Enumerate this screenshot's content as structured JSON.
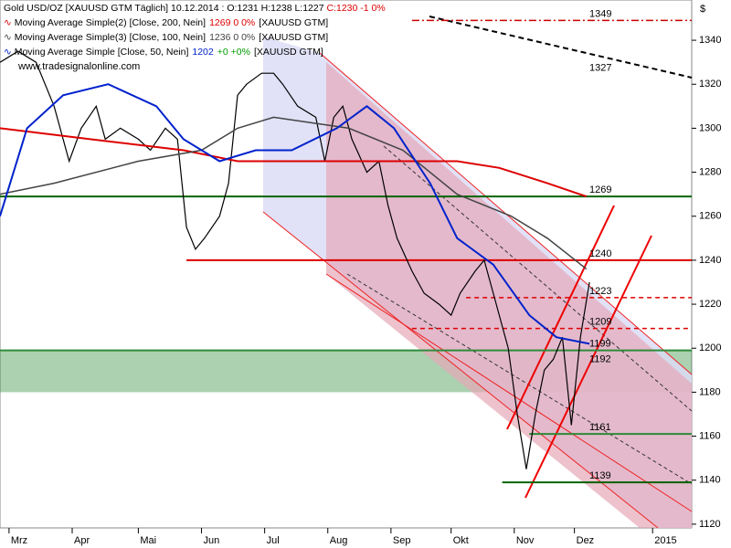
{
  "chart_data": {
    "type": "line",
    "title": "Gold USD/OZ [XAUUSD GTM  Täglich] 10.12.2014 : O:1231 H:1238 L:1227",
    "title_change": "C:1230 -1 0%",
    "watermark": "www.tradesignalonline.com",
    "currency": "$",
    "xlim": [
      0,
      230
    ],
    "xticks": [
      {
        "value": 3,
        "label": "Mrz"
      },
      {
        "value": 24,
        "label": "Apr"
      },
      {
        "value": 46,
        "label": "Mai"
      },
      {
        "value": 67,
        "label": "Jun"
      },
      {
        "value": 88,
        "label": "Jul"
      },
      {
        "value": 109,
        "label": "Aug"
      },
      {
        "value": 130,
        "label": "Sep"
      },
      {
        "value": 150,
        "label": "Okt"
      },
      {
        "value": 171,
        "label": "Nov"
      },
      {
        "value": 191,
        "label": "Dez"
      },
      {
        "value": 217,
        "label": "2015"
      }
    ],
    "ylim": [
      1118.3,
      1358.3
    ],
    "yticks": [
      1120,
      1140,
      1160,
      1180,
      1200,
      1220,
      1240,
      1260,
      1280,
      1300,
      1320,
      1340
    ],
    "series": [
      {
        "color": "#000000",
        "width": 1.2,
        "x": [
          0,
          6,
          12,
          18,
          23,
          27,
          32,
          35,
          40,
          46,
          50,
          55,
          59,
          62,
          65,
          68,
          73,
          76,
          79,
          82,
          87,
          91,
          94,
          99,
          105,
          108,
          111,
          114,
          117,
          122,
          126,
          129,
          132,
          137,
          141,
          146,
          150,
          153,
          158,
          161,
          164,
          169,
          172,
          175,
          178,
          181,
          184,
          187,
          190,
          193,
          196
        ],
        "values": [
          1330,
          1335,
          1330,
          1310,
          1285,
          1300,
          1310,
          1295,
          1300,
          1295,
          1290,
          1300,
          1295,
          1255,
          1245,
          1250,
          1260,
          1275,
          1315,
          1320,
          1325,
          1325,
          1320,
          1310,
          1305,
          1285,
          1305,
          1310,
          1295,
          1280,
          1285,
          1265,
          1250,
          1235,
          1225,
          1220,
          1215,
          1225,
          1235,
          1240,
          1225,
          1200,
          1170,
          1145,
          1170,
          1190,
          1195,
          1205,
          1165,
          1205,
          1230
        ]
      },
      {
        "name": "Moving Average Simple(2) [Close, 200, Nein]",
        "legend_value": "1269 0 0%",
        "legend_tail": "[XAUUSD GTM]",
        "color": "#dd0000",
        "width": 2,
        "x": [
          0,
          30,
          61,
          79,
          91,
          122,
          152,
          166,
          182,
          195
        ],
        "values": [
          1300,
          1295,
          1290,
          1285,
          1285,
          1285,
          1285,
          1282,
          1275,
          1269
        ]
      },
      {
        "name": "Moving Average Simple(3) [Close, 100, Nein]",
        "legend_value": "1236 0 0%",
        "legend_tail": "[XAUUSD GTM]",
        "color": "#444444",
        "width": 1.5,
        "x": [
          0,
          18,
          46,
          67,
          79,
          91,
          116,
          134,
          152,
          170,
          182,
          195
        ],
        "values": [
          1270,
          1275,
          1285,
          1290,
          1300,
          1305,
          1300,
          1290,
          1270,
          1260,
          1250,
          1236
        ]
      },
      {
        "name": "Moving Average Simple [Close, 50, Nein]",
        "legend_value": "1202",
        "legend_change": "+0 +0%",
        "legend_tail": "[XAUUSD GTM]",
        "color": "#0022cc",
        "width": 2,
        "x": [
          0,
          9,
          21,
          36,
          52,
          61,
          73,
          85,
          97,
          112,
          122,
          131,
          143,
          152,
          164,
          176,
          185,
          196
        ],
        "values": [
          1260,
          1300,
          1315,
          1320,
          1310,
          1295,
          1285,
          1290,
          1290,
          1300,
          1310,
          1300,
          1275,
          1250,
          1238,
          1215,
          1205,
          1202
        ]
      }
    ],
    "zone": {
      "from": 1180,
      "to": 1199,
      "color": "#2e8b3a"
    },
    "levels": [
      {
        "value": 1349,
        "from": 137,
        "color": "#cc0000",
        "style": "dashdot"
      },
      {
        "value": 1269,
        "from": 0,
        "color": "#006400",
        "style": "solid"
      },
      {
        "value": 1240,
        "from": 62,
        "color": "#dd0000",
        "style": "solid"
      },
      {
        "value": 1223,
        "from": 155,
        "color": "#dd0000",
        "style": "dashed"
      },
      {
        "value": 1209,
        "from": 137,
        "color": "#dd0000",
        "style": "dashed"
      },
      {
        "value": 1199,
        "from": 0,
        "color": "#2e8b3a",
        "style": "solid"
      },
      {
        "value": 1192,
        "from": 196,
        "color": "#dd0000",
        "style": "none"
      },
      {
        "value": 1161,
        "from": 176,
        "color": "#2e8b3a",
        "style": "solid"
      },
      {
        "value": 1139,
        "from": 167,
        "color": "#006400",
        "style": "solid"
      }
    ],
    "annotations": [
      {
        "value": 1327,
        "color": "#000000"
      }
    ]
  }
}
